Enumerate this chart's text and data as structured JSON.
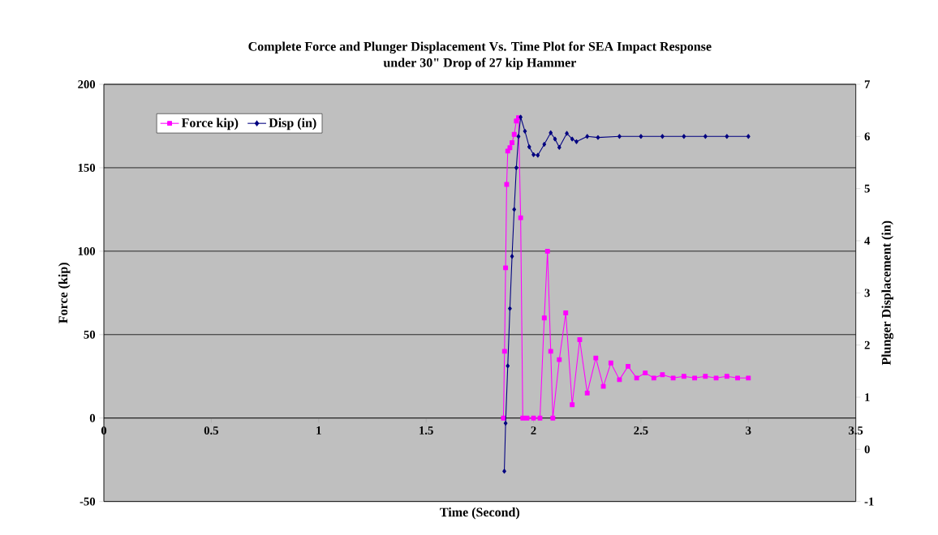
{
  "chart_data": {
    "type": "line",
    "title": "Complete Force and Plunger Displacement Vs. Time Plot for SEA Impact Response",
    "subtitle": "under 30\" Drop of 27 kip Hammer",
    "xlabel": "Time (Second)",
    "ylabel": "Force (kip)",
    "y2label": "Plunger Displacement (in)",
    "xlim": [
      0,
      3.5
    ],
    "xticks": [
      0,
      0.5,
      1,
      1.5,
      2,
      2.5,
      3,
      3.5
    ],
    "ylim": [
      -50,
      200
    ],
    "yticks": [
      -50,
      0,
      50,
      100,
      150,
      200
    ],
    "y2lim": [
      -1,
      7
    ],
    "y2ticks": [
      -1,
      0,
      1,
      2,
      3,
      4,
      5,
      6,
      7
    ],
    "grid": "y",
    "legend": "top left",
    "series": [
      {
        "name": "Force kip)",
        "color": "#ff00ff",
        "marker": "square",
        "x": [
          1.86,
          1.865,
          1.87,
          1.875,
          1.88,
          1.89,
          1.9,
          1.91,
          1.92,
          1.93,
          1.94,
          1.95,
          1.97,
          2.0,
          2.03,
          2.05,
          2.065,
          2.08,
          2.09,
          2.12,
          2.15,
          2.18,
          2.215,
          2.25,
          2.29,
          2.325,
          2.36,
          2.4,
          2.44,
          2.48,
          2.52,
          2.56,
          2.6,
          2.65,
          2.7,
          2.75,
          2.8,
          2.85,
          2.9,
          2.95,
          3.0
        ],
        "values": [
          0,
          40,
          90,
          140,
          160,
          162,
          165,
          170,
          178,
          180,
          120,
          0,
          0,
          0,
          0,
          60,
          100,
          40,
          0,
          35,
          63,
          8,
          47,
          15,
          36,
          19,
          33,
          23,
          31,
          24,
          27,
          24,
          26,
          24,
          25,
          24,
          25,
          24,
          25,
          24,
          24
        ]
      },
      {
        "name": "Disp (in)",
        "color": "#000080",
        "marker": "diamond",
        "axis": "y2",
        "x": [
          1.864,
          1.87,
          1.88,
          1.89,
          1.9,
          1.91,
          1.92,
          1.93,
          1.94,
          1.96,
          1.98,
          2.0,
          2.02,
          2.05,
          2.08,
          2.1,
          2.12,
          2.155,
          2.18,
          2.2,
          2.25,
          2.3,
          2.4,
          2.5,
          2.6,
          2.7,
          2.8,
          2.9,
          3.0
        ],
        "values": [
          -0.42,
          0.5,
          1.6,
          2.7,
          3.7,
          4.6,
          5.4,
          6.0,
          6.37,
          6.1,
          5.8,
          5.65,
          5.64,
          5.85,
          6.07,
          5.95,
          5.79,
          6.06,
          5.95,
          5.9,
          6.0,
          5.98,
          6.0,
          6.0,
          6.0,
          6.0,
          6.0,
          6.0,
          6.0
        ]
      }
    ]
  }
}
